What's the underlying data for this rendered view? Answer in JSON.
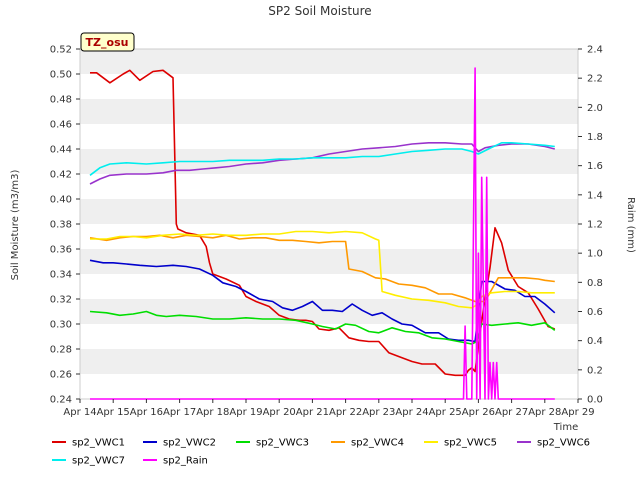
{
  "chart_data": {
    "type": "line",
    "title": "SP2 Soil Moisture",
    "xlabel": "Time",
    "ylabel": "Soil Moisture (m3/m3)",
    "y2label": "Raim (mm)",
    "badge": "TZ_osu",
    "x_ticks": [
      "Apr 14",
      "Apr 15",
      "Apr 16",
      "Apr 17",
      "Apr 18",
      "Apr 19",
      "Apr 20",
      "Apr 21",
      "Apr 22",
      "Apr 23",
      "Apr 24",
      "Apr 25",
      "Apr 26",
      "Apr 27",
      "Apr 28",
      "Apr 29"
    ],
    "xlim": [
      14,
      29
    ],
    "ylim": [
      0.24,
      0.52
    ],
    "y_ticks": [
      "0.24",
      "0.26",
      "0.28",
      "0.30",
      "0.32",
      "0.34",
      "0.36",
      "0.38",
      "0.40",
      "0.42",
      "0.44",
      "0.46",
      "0.48",
      "0.50",
      "0.52"
    ],
    "y2lim": [
      0.0,
      2.4
    ],
    "y2_ticks": [
      "0.0",
      "0.2",
      "0.4",
      "0.6",
      "0.8",
      "1.0",
      "1.2",
      "1.4",
      "1.6",
      "1.8",
      "2.0",
      "2.2",
      "2.4"
    ],
    "grid": "horizontal bands",
    "legend_position": "bottom",
    "series": [
      {
        "name": "sp2_VWC1",
        "color": "#dd0000",
        "axis": "left",
        "x": [
          14.3,
          14.5,
          14.9,
          15.3,
          15.5,
          15.8,
          16.2,
          16.5,
          16.8,
          16.9,
          16.95,
          17.2,
          17.6,
          17.8,
          17.9,
          18.0,
          18.4,
          18.8,
          19.0,
          19.3,
          19.7,
          20.0,
          20.3,
          20.6,
          20.8,
          21.0,
          21.2,
          21.5,
          21.8,
          22.1,
          22.4,
          22.7,
          23.0,
          23.3,
          23.6,
          24.0,
          24.3,
          24.7,
          25.0,
          25.3,
          25.6,
          25.7,
          25.8,
          25.9,
          26.05,
          26.2,
          26.35,
          26.5,
          26.7,
          26.9,
          27.2,
          27.5,
          27.8,
          28.1,
          28.3
        ],
        "y": [
          0.501,
          0.501,
          0.493,
          0.5,
          0.503,
          0.495,
          0.502,
          0.503,
          0.497,
          0.38,
          0.376,
          0.373,
          0.371,
          0.362,
          0.349,
          0.34,
          0.336,
          0.331,
          0.322,
          0.318,
          0.314,
          0.307,
          0.304,
          0.303,
          0.303,
          0.302,
          0.296,
          0.295,
          0.297,
          0.289,
          0.287,
          0.286,
          0.286,
          0.277,
          0.274,
          0.27,
          0.268,
          0.268,
          0.26,
          0.259,
          0.259,
          0.263,
          0.265,
          0.262,
          0.293,
          0.32,
          0.345,
          0.377,
          0.365,
          0.343,
          0.33,
          0.325,
          0.312,
          0.298,
          0.296
        ]
      },
      {
        "name": "sp2_VWC2",
        "color": "#0000cc",
        "axis": "left",
        "x": [
          14.3,
          14.7,
          15.0,
          15.4,
          15.8,
          16.3,
          16.8,
          17.2,
          17.6,
          18.0,
          18.3,
          18.7,
          19.0,
          19.4,
          19.8,
          20.1,
          20.4,
          20.7,
          21.0,
          21.3,
          21.6,
          21.9,
          22.2,
          22.5,
          22.8,
          23.1,
          23.4,
          23.7,
          24.0,
          24.4,
          24.8,
          25.1,
          25.4,
          25.7,
          25.9,
          26.1,
          26.4,
          26.8,
          27.1,
          27.4,
          27.7,
          28.0,
          28.3
        ],
        "y": [
          0.351,
          0.349,
          0.349,
          0.348,
          0.347,
          0.346,
          0.347,
          0.346,
          0.344,
          0.339,
          0.333,
          0.33,
          0.326,
          0.32,
          0.318,
          0.313,
          0.311,
          0.314,
          0.318,
          0.311,
          0.311,
          0.31,
          0.316,
          0.311,
          0.307,
          0.309,
          0.304,
          0.3,
          0.299,
          0.293,
          0.293,
          0.288,
          0.287,
          0.287,
          0.286,
          0.334,
          0.334,
          0.328,
          0.327,
          0.322,
          0.322,
          0.316,
          0.309
        ]
      },
      {
        "name": "sp2_VWC3",
        "color": "#00dd00",
        "axis": "left",
        "x": [
          14.3,
          14.8,
          15.2,
          15.6,
          16.0,
          16.3,
          16.6,
          17.0,
          17.5,
          18.0,
          18.5,
          19.0,
          19.5,
          20.0,
          20.5,
          21.0,
          21.3,
          21.7,
          22.0,
          22.3,
          22.7,
          23.0,
          23.4,
          23.8,
          24.2,
          24.6,
          25.0,
          25.4,
          25.8,
          25.95,
          26.1,
          26.4,
          26.8,
          27.2,
          27.6,
          28.0,
          28.3
        ],
        "y": [
          0.31,
          0.309,
          0.307,
          0.308,
          0.31,
          0.307,
          0.306,
          0.307,
          0.306,
          0.304,
          0.304,
          0.305,
          0.304,
          0.304,
          0.303,
          0.3,
          0.298,
          0.296,
          0.3,
          0.299,
          0.294,
          0.293,
          0.297,
          0.294,
          0.293,
          0.289,
          0.288,
          0.286,
          0.284,
          0.286,
          0.3,
          0.299,
          0.3,
          0.301,
          0.299,
          0.301,
          0.295
        ]
      },
      {
        "name": "sp2_VWC4",
        "color": "#ff9900",
        "axis": "left",
        "x": [
          14.3,
          14.8,
          15.2,
          15.6,
          16.0,
          16.4,
          16.8,
          17.2,
          17.6,
          18.0,
          18.4,
          18.8,
          19.2,
          19.6,
          20.0,
          20.4,
          20.8,
          21.2,
          21.6,
          22.0,
          22.1,
          22.5,
          22.9,
          23.2,
          23.6,
          24.0,
          24.4,
          24.8,
          25.2,
          25.6,
          25.9,
          26.2,
          26.6,
          27.0,
          27.4,
          27.8,
          28.0,
          28.3
        ],
        "y": [
          0.369,
          0.367,
          0.369,
          0.37,
          0.37,
          0.371,
          0.369,
          0.371,
          0.37,
          0.369,
          0.371,
          0.368,
          0.369,
          0.369,
          0.367,
          0.367,
          0.366,
          0.365,
          0.366,
          0.366,
          0.344,
          0.342,
          0.337,
          0.336,
          0.332,
          0.331,
          0.329,
          0.324,
          0.324,
          0.321,
          0.318,
          0.318,
          0.337,
          0.337,
          0.337,
          0.336,
          0.335,
          0.334
        ]
      },
      {
        "name": "sp2_VWC5",
        "color": "#ffee00",
        "axis": "left",
        "x": [
          14.3,
          14.8,
          15.2,
          15.6,
          16.0,
          16.5,
          17.0,
          17.5,
          18.0,
          18.5,
          19.0,
          19.5,
          20.0,
          20.5,
          21.0,
          21.5,
          22.0,
          22.5,
          22.9,
          23.0,
          23.1,
          23.5,
          24.0,
          24.5,
          25.0,
          25.4,
          25.8,
          26.0,
          26.1,
          26.4,
          26.8,
          27.2,
          27.6,
          28.0,
          28.3
        ],
        "y": [
          0.368,
          0.368,
          0.37,
          0.37,
          0.369,
          0.371,
          0.372,
          0.371,
          0.372,
          0.371,
          0.371,
          0.372,
          0.372,
          0.374,
          0.374,
          0.373,
          0.374,
          0.373,
          0.368,
          0.367,
          0.326,
          0.323,
          0.32,
          0.319,
          0.317,
          0.314,
          0.313,
          0.316,
          0.322,
          0.325,
          0.326,
          0.326,
          0.325,
          0.325,
          0.325
        ]
      },
      {
        "name": "sp2_VWC6",
        "color": "#9933cc",
        "axis": "left",
        "x": [
          14.3,
          14.6,
          14.9,
          15.4,
          16.0,
          16.5,
          16.9,
          17.3,
          17.7,
          18.1,
          18.5,
          19.0,
          19.5,
          20.0,
          20.5,
          21.0,
          21.5,
          22.0,
          22.5,
          23.0,
          23.5,
          24.0,
          24.5,
          25.0,
          25.5,
          25.8,
          26.0,
          26.2,
          26.6,
          27.0,
          27.5,
          28.0,
          28.3
        ],
        "y": [
          0.412,
          0.416,
          0.419,
          0.42,
          0.42,
          0.421,
          0.423,
          0.423,
          0.424,
          0.425,
          0.426,
          0.428,
          0.429,
          0.431,
          0.432,
          0.433,
          0.436,
          0.438,
          0.44,
          0.441,
          0.442,
          0.444,
          0.445,
          0.445,
          0.444,
          0.444,
          0.438,
          0.441,
          0.443,
          0.444,
          0.444,
          0.442,
          0.44
        ]
      },
      {
        "name": "sp2_VWC7",
        "color": "#00eeee",
        "axis": "left",
        "x": [
          14.3,
          14.6,
          14.9,
          15.4,
          16.0,
          16.5,
          17.0,
          17.5,
          18.0,
          18.5,
          19.0,
          19.5,
          20.0,
          20.5,
          21.0,
          21.5,
          22.0,
          22.5,
          23.0,
          23.5,
          24.0,
          24.5,
          25.0,
          25.5,
          25.8,
          26.0,
          26.3,
          26.7,
          27.0,
          27.5,
          28.0,
          28.3
        ],
        "y": [
          0.419,
          0.425,
          0.428,
          0.429,
          0.428,
          0.429,
          0.43,
          0.43,
          0.43,
          0.431,
          0.431,
          0.431,
          0.432,
          0.432,
          0.433,
          0.433,
          0.433,
          0.434,
          0.434,
          0.436,
          0.438,
          0.439,
          0.44,
          0.44,
          0.438,
          0.436,
          0.44,
          0.445,
          0.445,
          0.444,
          0.443,
          0.442
        ]
      },
      {
        "name": "sp2_Rain",
        "color": "#ff00ff",
        "axis": "right",
        "x": [
          14.3,
          25.4,
          25.55,
          25.6,
          25.65,
          25.8,
          25.9,
          25.95,
          26.0,
          26.05,
          26.1,
          26.2,
          26.25,
          26.3,
          26.35,
          26.4,
          26.45,
          26.5,
          26.55,
          26.6,
          26.7,
          28.3
        ],
        "y": [
          0,
          0,
          0,
          0.5,
          0,
          0,
          2.27,
          0,
          1.0,
          0,
          1.52,
          0,
          1.52,
          0,
          0.25,
          0,
          0.25,
          0,
          0.25,
          0,
          0,
          0
        ]
      }
    ]
  }
}
